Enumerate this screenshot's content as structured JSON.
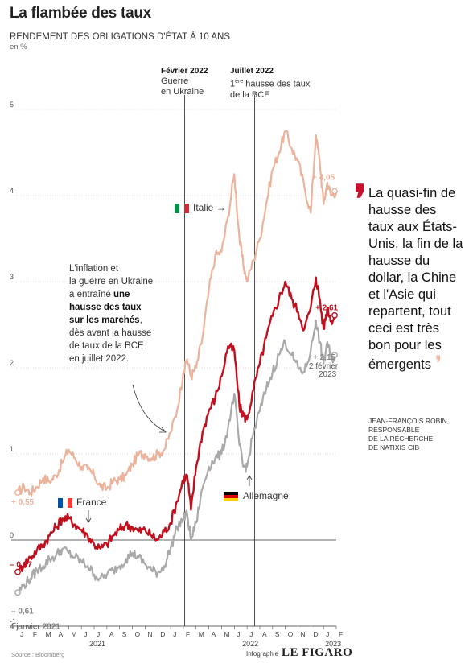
{
  "header": {
    "title": "La flambée des taux",
    "subtitle": "RENDEMENT DES OBLIGATIONS D'ÉTAT À 10 ANS",
    "unit": "en %"
  },
  "events": [
    {
      "date": "Février 2022",
      "text1": "Guerre",
      "text2": "en Ukraine"
    },
    {
      "date": "Juillet 2022",
      "text1_sup": "ère",
      "text1_pre": "1",
      "text1_post": " hausse des taux",
      "text2": "de la BCE"
    }
  ],
  "annotation": {
    "l1": "L'inflation et",
    "l2": "la guerre en Ukraine",
    "l3_pre": "a entraîné ",
    "l3_bold": "une",
    "l4_bold": "hausse des taux",
    "l5_bold": "sur les marchés",
    "l5_post": ",",
    "l6": "dès avant la hausse",
    "l7": "de taux de la BCE",
    "l8": "en juillet 2022."
  },
  "country_labels": {
    "italie": "Italie",
    "france": "France",
    "allemagne": "Allemagne"
  },
  "value_labels": {
    "italie_start": "+ 0,55",
    "france_start": "– 0,37",
    "allemagne_start": "– 0,61",
    "italie_end": "+ 4,05",
    "france_end": "+ 2,61",
    "allemagne_end": "+ 2,15",
    "start_date": "4 janvier 2021",
    "end_date_1": "2 février",
    "end_date_2": "2023"
  },
  "quote": {
    "text": "La quasi-fin de hausse des taux aux États-Unis, la fin de la hausse du dollar, la Chine et l'Asie qui repartent, tout ceci est très bon pour les émergents",
    "author_1": "JEAN-FRANÇOIS ROBIN,",
    "author_2": "RESPONSABLE",
    "author_3": "DE LA RECHERCHE",
    "author_4": "DE NATIXIS CIB"
  },
  "footer": {
    "source": "Source : Bloomberg",
    "infographie": "Infographie",
    "brand": "LE FIGARO"
  },
  "colors": {
    "italie": "#ecb39c",
    "france": "#c0101e",
    "allemagne": "#a9a9a9",
    "accent": "#c8102e"
  },
  "chart_data": {
    "type": "line",
    "ylim": [
      -1,
      5
    ],
    "yticks": [
      -1,
      0,
      1,
      2,
      3,
      4,
      5
    ],
    "month_ticks": [
      "J",
      "F",
      "M",
      "A",
      "M",
      "J",
      "J",
      "A",
      "S",
      "O",
      "N",
      "D",
      "J",
      "F",
      "M",
      "A",
      "M",
      "J",
      "J",
      "A",
      "S",
      "O",
      "N",
      "D",
      "J",
      "F"
    ],
    "year_labels": [
      {
        "label": "2021",
        "month_index": 6
      },
      {
        "label": "2022",
        "month_index": 18
      },
      {
        "label": "2023",
        "month_index": 24.5
      }
    ],
    "series": [
      {
        "name": "Italie",
        "points": [
          [
            0,
            0.55
          ],
          [
            0.5,
            0.62
          ],
          [
            1,
            0.55
          ],
          [
            1.5,
            0.62
          ],
          [
            2,
            0.72
          ],
          [
            2.5,
            0.68
          ],
          [
            3,
            0.75
          ],
          [
            3.5,
            0.9
          ],
          [
            4,
            1.05
          ],
          [
            4.5,
            0.95
          ],
          [
            5,
            0.85
          ],
          [
            5.5,
            0.82
          ],
          [
            6,
            0.75
          ],
          [
            6.5,
            0.62
          ],
          [
            7,
            0.6
          ],
          [
            7.5,
            0.68
          ],
          [
            8,
            0.7
          ],
          [
            8.5,
            0.75
          ],
          [
            9,
            0.88
          ],
          [
            9.5,
            1.0
          ],
          [
            10,
            1.0
          ],
          [
            10.5,
            0.95
          ],
          [
            11,
            1.0
          ],
          [
            11.5,
            1.05
          ],
          [
            12,
            1.25
          ],
          [
            12.5,
            1.5
          ],
          [
            13,
            1.95
          ],
          [
            13.3,
            2.1
          ],
          [
            13.6,
            1.9
          ],
          [
            14,
            2.0
          ],
          [
            14.5,
            2.35
          ],
          [
            15,
            2.9
          ],
          [
            15.5,
            3.3
          ],
          [
            16,
            3.35
          ],
          [
            16.5,
            3.75
          ],
          [
            17,
            4.25
          ],
          [
            17.4,
            3.5
          ],
          [
            17.7,
            3.2
          ],
          [
            18,
            3.0
          ],
          [
            18.5,
            3.25
          ],
          [
            19,
            3.5
          ],
          [
            19.5,
            3.9
          ],
          [
            20,
            4.3
          ],
          [
            20.5,
            4.5
          ],
          [
            21,
            4.75
          ],
          [
            21.5,
            4.55
          ],
          [
            22,
            4.4
          ],
          [
            22.5,
            4.1
          ],
          [
            23,
            3.8
          ],
          [
            23.4,
            4.7
          ],
          [
            23.7,
            4.4
          ],
          [
            24,
            3.9
          ],
          [
            24.3,
            4.15
          ],
          [
            24.6,
            4.0
          ],
          [
            25,
            4.05
          ]
        ]
      },
      {
        "name": "France",
        "points": [
          [
            0,
            -0.37
          ],
          [
            0.5,
            -0.28
          ],
          [
            1,
            -0.2
          ],
          [
            1.5,
            -0.12
          ],
          [
            2,
            -0.05
          ],
          [
            2.5,
            0.05
          ],
          [
            3,
            0.15
          ],
          [
            3.5,
            0.25
          ],
          [
            4,
            0.25
          ],
          [
            4.5,
            0.18
          ],
          [
            5,
            0.12
          ],
          [
            5.5,
            0.05
          ],
          [
            6,
            -0.05
          ],
          [
            6.5,
            -0.1
          ],
          [
            7,
            -0.05
          ],
          [
            7.5,
            0.05
          ],
          [
            8,
            0.12
          ],
          [
            8.5,
            0.18
          ],
          [
            9,
            0.15
          ],
          [
            9.5,
            0.1
          ],
          [
            10,
            0.12
          ],
          [
            10.5,
            0.05
          ],
          [
            11,
            0.0
          ],
          [
            11.5,
            0.1
          ],
          [
            12,
            0.2
          ],
          [
            12.5,
            0.45
          ],
          [
            13,
            0.7
          ],
          [
            13.3,
            0.75
          ],
          [
            13.6,
            0.35
          ],
          [
            14,
            0.85
          ],
          [
            14.5,
            1.25
          ],
          [
            15,
            1.5
          ],
          [
            15.5,
            1.65
          ],
          [
            16,
            1.9
          ],
          [
            16.5,
            2.25
          ],
          [
            17,
            2.2
          ],
          [
            17.4,
            1.55
          ],
          [
            17.7,
            1.45
          ],
          [
            18,
            1.4
          ],
          [
            18.5,
            1.75
          ],
          [
            19,
            2.05
          ],
          [
            19.5,
            2.35
          ],
          [
            20,
            2.6
          ],
          [
            20.5,
            2.8
          ],
          [
            21,
            3.0
          ],
          [
            21.5,
            2.8
          ],
          [
            22,
            2.65
          ],
          [
            22.5,
            2.45
          ],
          [
            23,
            2.7
          ],
          [
            23.4,
            3.05
          ],
          [
            23.7,
            2.8
          ],
          [
            24,
            2.45
          ],
          [
            24.3,
            2.7
          ],
          [
            24.6,
            2.55
          ],
          [
            25,
            2.61
          ]
        ]
      },
      {
        "name": "Allemagne",
        "points": [
          [
            0,
            -0.61
          ],
          [
            0.5,
            -0.52
          ],
          [
            1,
            -0.45
          ],
          [
            1.5,
            -0.35
          ],
          [
            2,
            -0.3
          ],
          [
            2.5,
            -0.22
          ],
          [
            3,
            -0.18
          ],
          [
            3.5,
            -0.1
          ],
          [
            4,
            -0.15
          ],
          [
            4.5,
            -0.2
          ],
          [
            5,
            -0.25
          ],
          [
            5.5,
            -0.3
          ],
          [
            6,
            -0.4
          ],
          [
            6.5,
            -0.45
          ],
          [
            7,
            -0.4
          ],
          [
            7.5,
            -0.35
          ],
          [
            8,
            -0.3
          ],
          [
            8.5,
            -0.22
          ],
          [
            9,
            -0.15
          ],
          [
            9.5,
            -0.2
          ],
          [
            10,
            -0.28
          ],
          [
            10.5,
            -0.35
          ],
          [
            11,
            -0.38
          ],
          [
            11.5,
            -0.3
          ],
          [
            12,
            -0.1
          ],
          [
            12.5,
            0.15
          ],
          [
            13,
            0.25
          ],
          [
            13.3,
            0.3
          ],
          [
            13.6,
            0.0
          ],
          [
            14,
            0.2
          ],
          [
            14.5,
            0.6
          ],
          [
            15,
            0.85
          ],
          [
            15.5,
            0.95
          ],
          [
            16,
            1.0
          ],
          [
            16.5,
            1.3
          ],
          [
            17,
            1.7
          ],
          [
            17.4,
            1.1
          ],
          [
            17.7,
            0.85
          ],
          [
            18,
            0.85
          ],
          [
            18.5,
            1.25
          ],
          [
            19,
            1.5
          ],
          [
            19.5,
            1.75
          ],
          [
            20,
            1.95
          ],
          [
            20.5,
            2.15
          ],
          [
            21,
            2.3
          ],
          [
            21.5,
            2.15
          ],
          [
            22,
            2.0
          ],
          [
            22.5,
            1.95
          ],
          [
            23,
            2.2
          ],
          [
            23.4,
            2.55
          ],
          [
            23.7,
            2.3
          ],
          [
            24,
            2.05
          ],
          [
            24.3,
            2.3
          ],
          [
            24.6,
            2.1
          ],
          [
            25,
            2.15
          ]
        ]
      }
    ],
    "vertical_markers": [
      13.1,
      18.6
    ]
  }
}
